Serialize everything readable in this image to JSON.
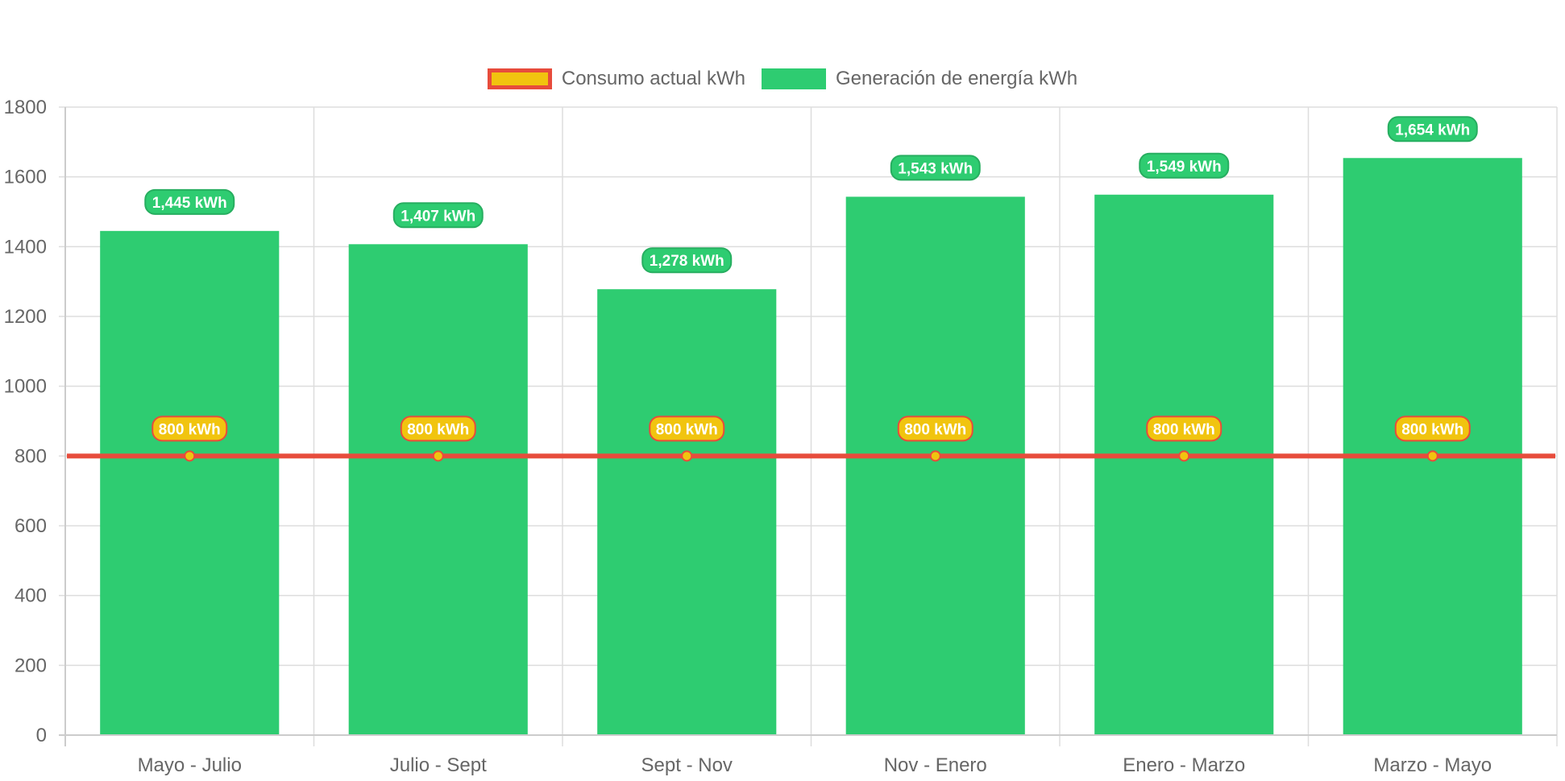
{
  "chart_data": {
    "type": "bar",
    "categories": [
      "Mayo - Julio",
      "Julio - Sept",
      "Sept - Nov",
      "Nov - Enero",
      "Enero - Marzo",
      "Marzo - Mayo"
    ],
    "series": [
      {
        "name": "Consumo actual kWh",
        "type": "line",
        "values": [
          800,
          800,
          800,
          800,
          800,
          800
        ],
        "labels": [
          "800 kWh",
          "800 kWh",
          "800 kWh",
          "800 kWh",
          "800 kWh",
          "800 kWh"
        ],
        "color": "#f1c40f",
        "border_color": "#e74c3c"
      },
      {
        "name": "Generación de energía kWh",
        "type": "bar",
        "values": [
          1445,
          1407,
          1278,
          1543,
          1549,
          1654
        ],
        "labels": [
          "1,445 kWh",
          "1,407 kWh",
          "1,278 kWh",
          "1,543 kWh",
          "1,549 kWh",
          "1,654 kWh"
        ],
        "color": "#2ecc71",
        "border_color": "#27ae60"
      }
    ],
    "y_ticks": [
      "0",
      "200",
      "400",
      "600",
      "800",
      "1000",
      "1200",
      "1400",
      "1600",
      "1800"
    ],
    "ylim": [
      0,
      1800
    ],
    "grid": true,
    "legend": "top-center"
  }
}
